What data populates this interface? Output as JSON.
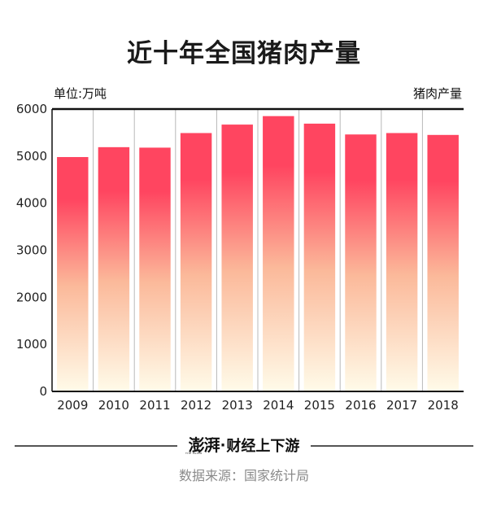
{
  "chart_data": {
    "type": "bar",
    "title": "近十年全国猪肉产量",
    "unit_label": "单位:万吨",
    "series_label": "猪肉产量",
    "categories": [
      "2009",
      "2010",
      "2011",
      "2012",
      "2013",
      "2014",
      "2015",
      "2016",
      "2017",
      "2018"
    ],
    "values": [
      4980,
      5190,
      5180,
      5490,
      5670,
      5850,
      5690,
      5460,
      5490,
      5450
    ],
    "ylim": [
      0,
      6000
    ],
    "yticks": [
      0,
      1000,
      2000,
      3000,
      4000,
      5000,
      6000
    ],
    "grid": "vertical separators",
    "bar_colors": {
      "top": "#ff4560",
      "middle": "#fbb99a",
      "bottom": "#fffbe9"
    }
  },
  "footer": {
    "brand_logo": "澎湃",
    "brand_tag": "THE PAPER",
    "brand_separator": "·",
    "brand_column": "财经上下游",
    "source": "数据来源：国家统计局"
  }
}
